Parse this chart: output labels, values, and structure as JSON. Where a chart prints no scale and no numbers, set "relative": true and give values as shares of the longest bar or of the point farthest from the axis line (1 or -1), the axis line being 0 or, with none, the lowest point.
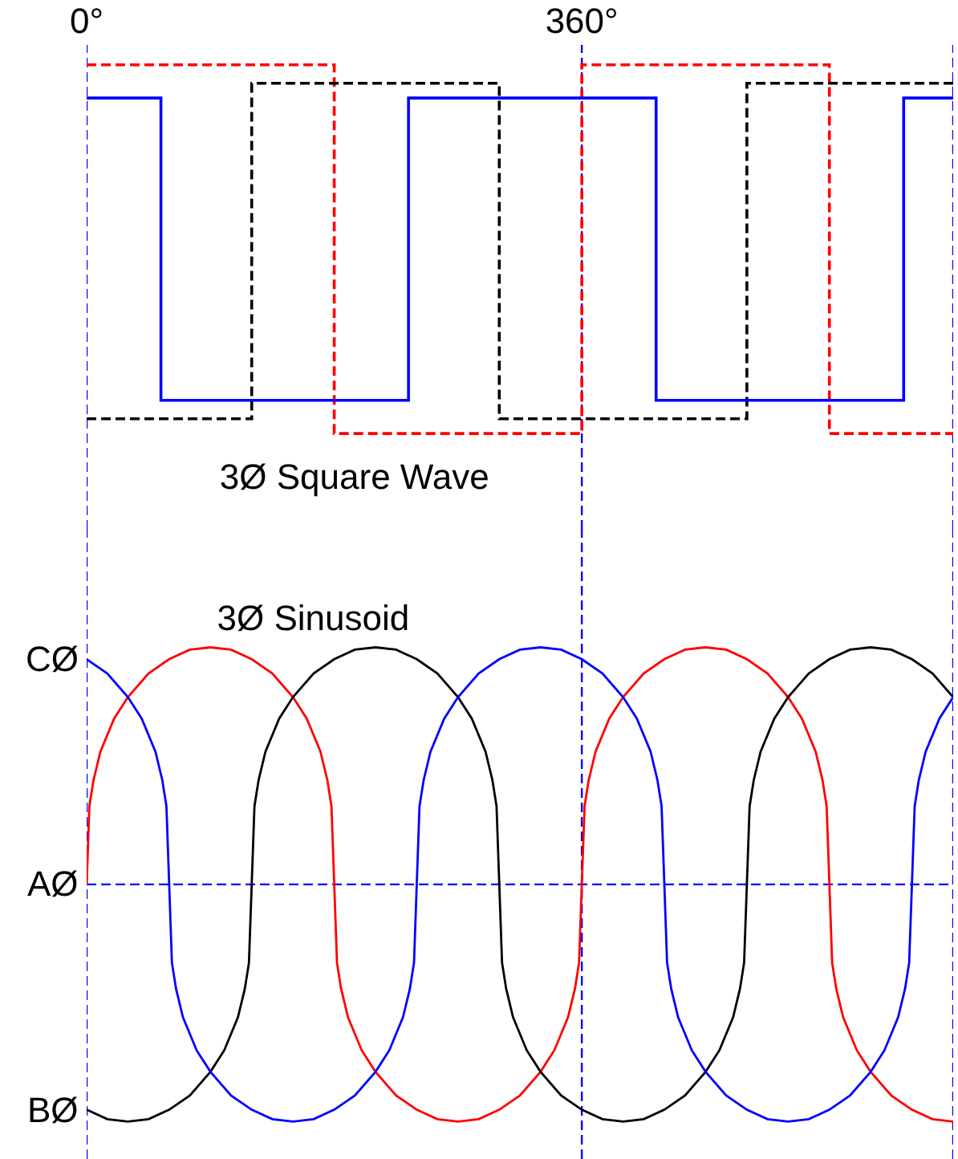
{
  "chart_data": [
    {
      "type": "step",
      "title": "3Ø Square Wave",
      "relative": true,
      "xlim": [
        0,
        630
      ],
      "xticks": [
        {
          "value": 0,
          "label": "0°"
        },
        {
          "value": 360,
          "label": "360°"
        }
      ],
      "series": [
        {
          "color": "#ff0000",
          "line_style": "dashed",
          "x": [
            0,
            180,
            360,
            540,
            630
          ],
          "values": [
            1,
            0,
            1,
            0,
            0
          ]
        },
        {
          "color": "#000000",
          "line_style": "dashed",
          "x": [
            0,
            120,
            300,
            480,
            630
          ],
          "values": [
            0.04,
            0.95,
            0.04,
            0.95,
            0.95
          ]
        },
        {
          "color": "#0000ff",
          "line_style": "solid",
          "x": [
            0,
            54,
            234,
            414,
            594,
            630
          ],
          "values": [
            0.91,
            0.09,
            0.91,
            0.09,
            0.91,
            0.91
          ]
        }
      ],
      "ref_lines": [
        {
          "axis": "x",
          "value": 0,
          "color": "#0000ff",
          "line_style": "dashed"
        },
        {
          "axis": "x",
          "value": 360,
          "color": "#0000ff",
          "line_style": "dashed"
        },
        {
          "axis": "x",
          "value": 630,
          "color": "#0000ff",
          "line_style": "dashed"
        }
      ]
    },
    {
      "type": "line",
      "title": "3Ø Sinusoid",
      "relative": true,
      "xlim": [
        0,
        630
      ],
      "tick_labels": false,
      "series": [
        {
          "name": "AØ",
          "color": "#ff0000",
          "x": [
            0,
            2,
            5,
            10,
            20,
            30,
            45,
            60,
            75,
            90,
            105,
            120,
            135,
            150,
            160,
            170,
            175,
            178,
            180,
            182,
            185,
            190,
            200,
            210,
            225,
            240,
            255,
            270,
            285,
            300,
            315,
            330,
            340,
            350,
            355,
            358,
            360,
            362,
            365,
            370,
            380,
            390,
            405,
            420,
            435,
            450,
            465,
            480,
            495,
            510,
            520,
            530,
            535,
            538,
            540,
            542,
            545,
            550,
            560,
            570,
            585,
            600,
            615,
            630
          ],
          "values": [
            0,
            0.33,
            0.44,
            0.56,
            0.7,
            0.79,
            0.89,
            0.95,
            0.99,
            1,
            0.99,
            0.95,
            0.89,
            0.79,
            0.7,
            0.56,
            0.44,
            0.33,
            0,
            -0.33,
            -0.44,
            -0.56,
            -0.7,
            -0.79,
            -0.89,
            -0.95,
            -0.99,
            -1,
            -0.99,
            -0.95,
            -0.89,
            -0.79,
            -0.7,
            -0.56,
            -0.44,
            -0.33,
            0,
            0.33,
            0.44,
            0.56,
            0.7,
            0.79,
            0.89,
            0.95,
            0.99,
            1,
            0.99,
            0.95,
            0.89,
            0.79,
            0.7,
            0.56,
            0.44,
            0.33,
            0,
            -0.33,
            -0.44,
            -0.56,
            -0.7,
            -0.79,
            -0.89,
            -0.95,
            -0.99,
            -1
          ]
        },
        {
          "name": "BØ",
          "color": "#000000",
          "x": [
            0,
            15,
            30,
            45,
            60,
            75,
            90,
            100,
            110,
            115,
            118,
            120,
            122,
            125,
            130,
            140,
            150,
            165,
            180,
            195,
            210,
            225,
            240,
            255,
            270,
            280,
            290,
            295,
            298,
            300,
            302,
            305,
            310,
            320,
            330,
            345,
            360,
            375,
            390,
            405,
            420,
            435,
            450,
            460,
            470,
            475,
            478,
            480,
            482,
            485,
            490,
            500,
            510,
            525,
            540,
            555,
            570,
            585,
            600,
            615,
            630
          ],
          "values": [
            -0.95,
            -0.99,
            -1,
            -0.99,
            -0.95,
            -0.89,
            -0.79,
            -0.7,
            -0.56,
            -0.44,
            -0.33,
            0,
            0.33,
            0.44,
            0.56,
            0.7,
            0.79,
            0.89,
            0.95,
            0.99,
            1,
            0.99,
            0.95,
            0.89,
            0.79,
            0.7,
            0.56,
            0.44,
            0.33,
            0,
            -0.33,
            -0.44,
            -0.56,
            -0.7,
            -0.79,
            -0.89,
            -0.95,
            -0.99,
            -1,
            -0.99,
            -0.95,
            -0.89,
            -0.79,
            -0.7,
            -0.56,
            -0.44,
            -0.33,
            0,
            0.33,
            0.44,
            0.56,
            0.7,
            0.79,
            0.89,
            0.95,
            0.99,
            1,
            0.99,
            0.95,
            0.89,
            0.79
          ]
        },
        {
          "name": "CØ",
          "color": "#0000ff",
          "x": [
            0,
            15,
            30,
            40,
            50,
            55,
            58,
            60,
            62,
            65,
            70,
            80,
            90,
            105,
            120,
            135,
            150,
            165,
            180,
            195,
            210,
            220,
            230,
            235,
            238,
            240,
            242,
            245,
            250,
            260,
            270,
            285,
            300,
            315,
            330,
            345,
            360,
            375,
            390,
            400,
            410,
            415,
            418,
            420,
            422,
            425,
            430,
            440,
            450,
            465,
            480,
            495,
            510,
            525,
            540,
            555,
            570,
            580,
            590,
            595,
            598,
            600,
            602,
            605,
            610,
            620,
            630
          ],
          "values": [
            0.95,
            0.89,
            0.79,
            0.7,
            0.56,
            0.44,
            0.33,
            0,
            -0.33,
            -0.44,
            -0.56,
            -0.7,
            -0.79,
            -0.89,
            -0.95,
            -0.99,
            -1,
            -0.99,
            -0.95,
            -0.89,
            -0.79,
            -0.7,
            -0.56,
            -0.44,
            -0.33,
            0,
            0.33,
            0.44,
            0.56,
            0.7,
            0.79,
            0.89,
            0.95,
            0.99,
            1,
            0.99,
            0.95,
            0.89,
            0.79,
            0.7,
            0.56,
            0.44,
            0.33,
            0,
            -0.33,
            -0.44,
            -0.56,
            -0.7,
            -0.79,
            -0.89,
            -0.95,
            -0.99,
            -1,
            -0.99,
            -0.95,
            -0.89,
            -0.79,
            -0.7,
            -0.56,
            -0.44,
            -0.33,
            0,
            0.33,
            0.44,
            0.56,
            0.7,
            0.79
          ]
        }
      ],
      "ref_lines": [
        {
          "axis": "x",
          "value": 0,
          "color": "#0000ff",
          "line_style": "dashed"
        },
        {
          "axis": "x",
          "value": 360,
          "color": "#0000ff",
          "line_style": "dashed"
        },
        {
          "axis": "x",
          "value": 630,
          "color": "#0000ff",
          "line_style": "dashed"
        },
        {
          "axis": "y",
          "value": 0,
          "color": "#0000ff",
          "line_style": "dashed"
        }
      ]
    }
  ]
}
